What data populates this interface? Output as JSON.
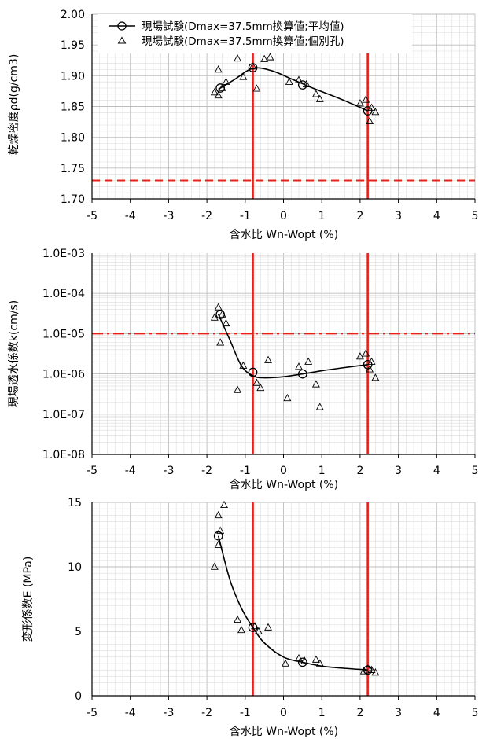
{
  "colors": {
    "reference_line": "#e8201c",
    "marker": "#000000",
    "grid_major": "#bdbdbd",
    "grid_minor": "#dcdcdc"
  },
  "legend": {
    "avg": "現場試験(Dmax=37.5mm換算値;平均値)",
    "ind": "現場試験(Dmax=37.5mm換算値;個別孔)"
  },
  "chart_data": [
    {
      "type": "scatter",
      "xlabel": "含水比  Wn-Wopt (%)",
      "ylabel": "乾燥密度ρd(g/cm3)",
      "xlim": [
        -5,
        5
      ],
      "ylim": [
        1.7,
        2.0
      ],
      "xticks": [
        "-5",
        "-4",
        "-3",
        "-2",
        "-1",
        "0",
        "1",
        "2",
        "3",
        "4",
        "5"
      ],
      "yticks": [
        "1.70",
        "1.75",
        "1.80",
        "1.85",
        "1.90",
        "1.95",
        "2.00"
      ],
      "grid": true,
      "legend_position": "top",
      "vertical_lines": [
        -0.8,
        2.2
      ],
      "horizontal_dashed_line": 1.73,
      "series": [
        {
          "name": "現場試験(Dmax=37.5mm換算値;平均値)",
          "marker": "circle",
          "x": [
            -1.65,
            -0.8,
            0.5,
            2.2
          ],
          "y": [
            1.88,
            1.913,
            1.885,
            1.843
          ]
        },
        {
          "name": "現場試験(Dmax=37.5mm換算値;個別孔)",
          "marker": "triangle",
          "x": [
            -1.8,
            -1.7,
            -1.7,
            -1.6,
            -1.5,
            -1.2,
            -1.05,
            -0.8,
            -0.7,
            -0.5,
            -0.35,
            0.15,
            0.4,
            0.6,
            0.85,
            0.95,
            2.0,
            2.15,
            2.25,
            2.3,
            2.4
          ],
          "y": [
            1.873,
            1.868,
            1.91,
            1.88,
            1.89,
            1.928,
            1.898,
            1.915,
            1.879,
            1.927,
            1.93,
            1.89,
            1.893,
            1.886,
            1.87,
            1.862,
            1.855,
            1.861,
            1.826,
            1.848,
            1.841
          ]
        }
      ],
      "trend_line": {
        "x": [
          -1.7,
          -1.3,
          -0.8,
          -0.3,
          0.2,
          0.8,
          1.5,
          2.2
        ],
        "y": [
          1.878,
          1.893,
          1.912,
          1.908,
          1.895,
          1.879,
          1.862,
          1.843
        ]
      }
    },
    {
      "type": "scatter",
      "scale_y": "log",
      "xlabel": "含水比  Wn-Wopt (%)",
      "ylabel": "現場透水係数k(cm/s)",
      "xlim": [
        -5,
        5
      ],
      "ylim": [
        1e-08,
        0.001
      ],
      "xticks": [
        "-5",
        "-4",
        "-3",
        "-2",
        "-1",
        "0",
        "1",
        "2",
        "3",
        "4",
        "5"
      ],
      "yticks": [
        "1.0E-08",
        "1.0E-07",
        "1.0E-06",
        "1.0E-05",
        "1.0E-04",
        "1.0E-03"
      ],
      "grid": true,
      "vertical_lines": [
        -0.8,
        2.2
      ],
      "horizontal_dashdot_line": 1e-05,
      "series": [
        {
          "name": "現場試験(Dmax=37.5mm換算値;平均値)",
          "marker": "circle",
          "x": [
            -1.65,
            -0.8,
            0.5,
            2.2
          ],
          "y": [
            3e-05,
            1.1e-06,
            1e-06,
            1.7e-06
          ]
        },
        {
          "name": "現場試験(Dmax=37.5mm換算値;個別孔)",
          "marker": "triangle",
          "x": [
            -1.8,
            -1.7,
            -1.65,
            -1.6,
            -1.5,
            -1.2,
            -1.05,
            -0.7,
            -0.6,
            -0.4,
            0.1,
            0.4,
            0.65,
            0.85,
            0.95,
            2.0,
            2.15,
            2.25,
            2.3,
            2.4
          ],
          "y": [
            2.5e-05,
            4.5e-05,
            6e-06,
            3e-05,
            1.8e-05,
            4e-07,
            1.6e-06,
            6e-07,
            4.5e-07,
            2.2e-06,
            2.5e-07,
            1.5e-06,
            2e-06,
            5.5e-07,
            1.5e-07,
            2.7e-06,
            3.2e-06,
            1.3e-06,
            2e-06,
            8e-07
          ]
        }
      ],
      "trend_line": {
        "x": [
          -1.7,
          -1.4,
          -1.1,
          -0.8,
          -0.5,
          0.0,
          0.5,
          1.0,
          1.5,
          2.2
        ],
        "y": [
          3e-05,
          7e-06,
          1.6e-06,
          9e-07,
          8e-07,
          8.5e-07,
          1e-06,
          1.2e-06,
          1.4e-06,
          1.7e-06
        ]
      }
    },
    {
      "type": "scatter",
      "xlabel": "含水比  Wn-Wopt (%)",
      "ylabel": "変形係数E (MPa)",
      "xlim": [
        -5,
        5
      ],
      "ylim": [
        0,
        15
      ],
      "xticks": [
        "-5",
        "-4",
        "-3",
        "-2",
        "-1",
        "0",
        "1",
        "2",
        "3",
        "4",
        "5"
      ],
      "yticks": [
        "0",
        "5",
        "10",
        "15"
      ],
      "grid": true,
      "vertical_lines": [
        -0.8,
        2.2
      ],
      "series": [
        {
          "name": "現場試験(Dmax=37.5mm換算値;平均値)",
          "marker": "circle",
          "x": [
            -1.7,
            -0.8,
            0.5,
            2.2
          ],
          "y": [
            12.4,
            5.3,
            2.6,
            2.0
          ]
        },
        {
          "name": "現場試験(Dmax=37.5mm換算値;個別孔)",
          "marker": "triangle",
          "x": [
            -1.8,
            -1.7,
            -1.7,
            -1.65,
            -1.55,
            -1.2,
            -1.1,
            -0.75,
            -0.65,
            -0.4,
            0.05,
            0.4,
            0.55,
            0.85,
            0.95,
            2.1,
            2.2,
            2.3,
            2.4
          ],
          "y": [
            10.0,
            14.0,
            11.7,
            12.8,
            14.8,
            5.9,
            5.1,
            5.4,
            5.0,
            5.3,
            2.5,
            2.9,
            2.7,
            2.8,
            2.5,
            1.9,
            2.1,
            2.0,
            1.8
          ]
        }
      ],
      "trend_line": {
        "x": [
          -1.7,
          -1.4,
          -1.1,
          -0.8,
          -0.5,
          0.0,
          0.5,
          1.0,
          1.5,
          2.2
        ],
        "y": [
          12.4,
          9.0,
          6.8,
          5.3,
          4.1,
          3.0,
          2.6,
          2.3,
          2.15,
          2.0
        ]
      }
    }
  ]
}
